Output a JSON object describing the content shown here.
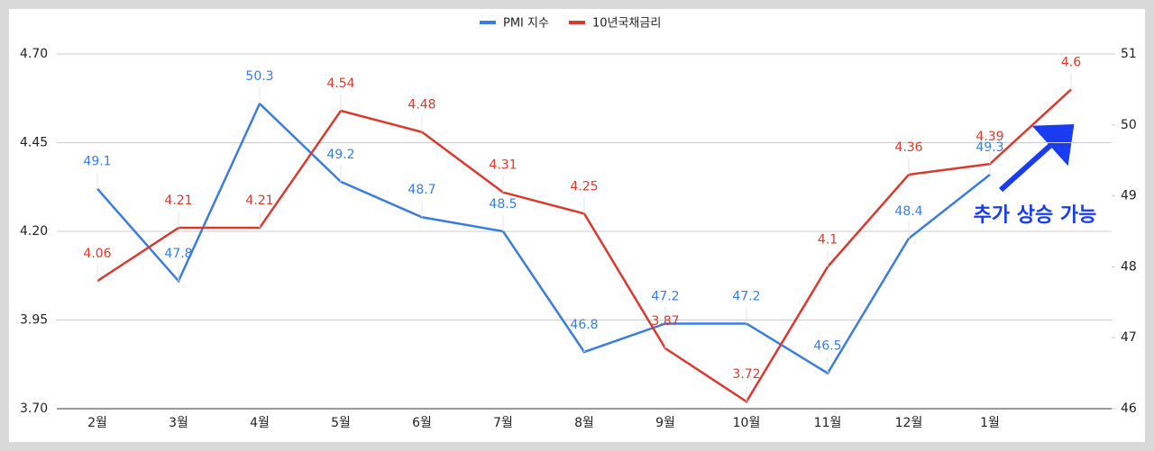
{
  "chart_data": {
    "type": "line",
    "legend": "top",
    "grid": true,
    "categories": [
      "2월",
      "3월",
      "4월",
      "5월",
      "6월",
      "7월",
      "8월",
      "9월",
      "10월",
      "11월",
      "12월",
      "1월",
      null
    ],
    "series": [
      {
        "name": "PMI 지수",
        "color": "#3b7ddd",
        "axis": "y2",
        "values": [
          49.1,
          47.8,
          50.3,
          49.2,
          48.7,
          48.5,
          46.8,
          47.2,
          47.2,
          46.5,
          48.4,
          49.3,
          null
        ]
      },
      {
        "name": "10년국채금리",
        "color": "#d93a2f",
        "values": [
          4.06,
          4.21,
          4.21,
          4.54,
          4.48,
          4.31,
          4.25,
          3.87,
          3.72,
          4.1,
          4.36,
          4.39,
          4.6
        ]
      }
    ],
    "ylim": [
      3.7,
      4.7
    ],
    "yticks": [
      {
        "value": 3.7,
        "label": "3.70"
      },
      3.95,
      {
        "value": 4.2,
        "label": "4.20"
      },
      4.45,
      {
        "value": 4.7,
        "label": "4.70"
      }
    ],
    "y2lim": [
      46,
      51
    ],
    "y2ticks": [
      46,
      47,
      48,
      49,
      50,
      51
    ],
    "annotations": [
      "추가 상승 가능"
    ]
  }
}
